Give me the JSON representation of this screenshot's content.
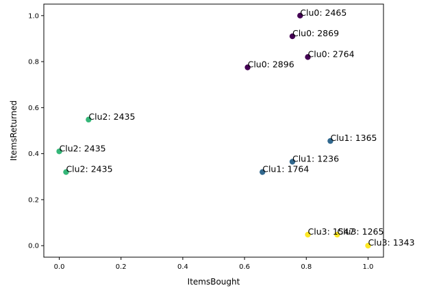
{
  "chart_data": {
    "type": "scatter",
    "title": "",
    "xlabel": "ItemsBought",
    "ylabel": "ItemsReturned",
    "xlim": [
      -0.05,
      1.05
    ],
    "ylim": [
      -0.05,
      1.05
    ],
    "xticks": [
      "0.0",
      "0.2",
      "0.4",
      "0.6",
      "0.8",
      "1.0"
    ],
    "yticks": [
      "0.0",
      "0.2",
      "0.4",
      "0.6",
      "0.8",
      "1.0"
    ],
    "grid": false,
    "legend": "none",
    "cluster_colors": [
      "#440154",
      "#31688e",
      "#35b779",
      "#fde725"
    ],
    "points": [
      {
        "x": 0.78,
        "y": 1.0,
        "cluster": 0,
        "label": "Clu0: 2465"
      },
      {
        "x": 0.755,
        "y": 0.91,
        "cluster": 0,
        "label": "Clu0: 2869"
      },
      {
        "x": 0.805,
        "y": 0.82,
        "cluster": 0,
        "label": "Clu0: 2764"
      },
      {
        "x": 0.61,
        "y": 0.775,
        "cluster": 0,
        "label": "Clu0: 2896"
      },
      {
        "x": 0.878,
        "y": 0.455,
        "cluster": 1,
        "label": "Clu1: 1365"
      },
      {
        "x": 0.755,
        "y": 0.365,
        "cluster": 1,
        "label": "Clu1: 1236"
      },
      {
        "x": 0.658,
        "y": 0.32,
        "cluster": 1,
        "label": "Clu1: 1764"
      },
      {
        "x": 0.095,
        "y": 0.548,
        "cluster": 2,
        "label": "Clu2: 2435"
      },
      {
        "x": 0.0,
        "y": 0.41,
        "cluster": 2,
        "label": "Clu2: 2435"
      },
      {
        "x": 0.022,
        "y": 0.32,
        "cluster": 2,
        "label": "Clu2: 2435"
      },
      {
        "x": 0.805,
        "y": 0.048,
        "cluster": 3,
        "label": "Clu3: 1547"
      },
      {
        "x": 0.9,
        "y": 0.048,
        "cluster": 3,
        "label": "Clu3: 1265"
      },
      {
        "x": 1.0,
        "y": 0.0,
        "cluster": 3,
        "label": "Clu3: 1343"
      }
    ]
  }
}
